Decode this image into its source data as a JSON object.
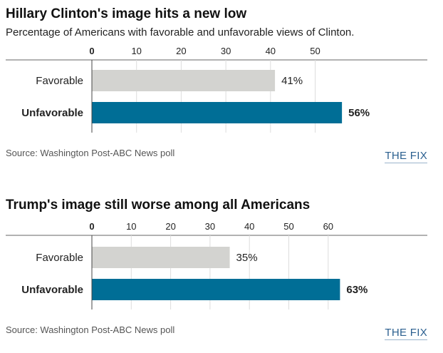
{
  "chart_data": [
    {
      "type": "bar",
      "orientation": "horizontal",
      "title": "Hillary Clinton's image hits a new low",
      "subtitle": "Percentage of Americans with favorable and unfavorable views of Clinton.",
      "categories": [
        "Favorable",
        "Unfavorable"
      ],
      "values": [
        41,
        56
      ],
      "value_labels": [
        "41%",
        "56%"
      ],
      "ticks": [
        0,
        10,
        20,
        30,
        40,
        50
      ],
      "tick_labels": [
        "0",
        "10",
        "20",
        "30",
        "40",
        "50"
      ],
      "xlim": [
        0,
        56
      ],
      "grid": true,
      "colors": [
        "#d3d3d0",
        "#006e96"
      ],
      "source": "Source: Washington Post-ABC News poll",
      "brand": "THE FIX"
    },
    {
      "type": "bar",
      "orientation": "horizontal",
      "title": "Trump's image still worse among all Americans",
      "subtitle": "",
      "categories": [
        "Favorable",
        "Unfavorable"
      ],
      "values": [
        35,
        63
      ],
      "value_labels": [
        "35%",
        "63%"
      ],
      "ticks": [
        0,
        10,
        20,
        30,
        40,
        50,
        60
      ],
      "tick_labels": [
        "0",
        "10",
        "20",
        "30",
        "40",
        "50",
        "60"
      ],
      "xlim": [
        0,
        63
      ],
      "grid": true,
      "colors": [
        "#d3d3d0",
        "#006e96"
      ],
      "source": "Source: Washington Post-ABC News poll",
      "brand": "THE FIX"
    }
  ]
}
